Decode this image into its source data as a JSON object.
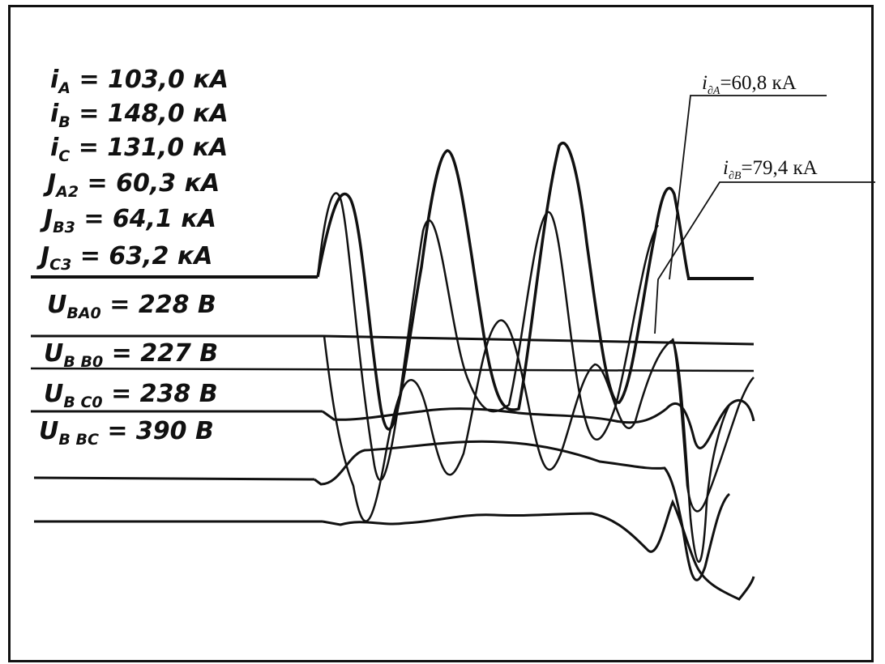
{
  "oscillogram": {
    "readings": [
      {
        "symbol": "i",
        "sub": "A",
        "eq": " = 103,0 кА"
      },
      {
        "symbol": "i",
        "sub": "B",
        "eq": " = 148,0 кА"
      },
      {
        "symbol": "i",
        "sub": "C",
        "eq": " = 131,0 кА"
      },
      {
        "symbol": "J",
        "sub": "A2",
        "eq": " = 60,3 кА"
      },
      {
        "symbol": "J",
        "sub": "B3",
        "eq": " = 64,1 кА"
      },
      {
        "symbol": "J",
        "sub": "C3",
        "eq": " = 63,2 кА"
      },
      {
        "symbol": "U",
        "sub": "BA0",
        "eq": " = 228 В"
      },
      {
        "symbol": "U",
        "sub": "B B0",
        "eq": " = 227 В"
      },
      {
        "symbol": "U",
        "sub": "B C0",
        "eq": " = 238 В"
      },
      {
        "symbol": "U",
        "sub": "B BC",
        "eq": " = 390 В"
      }
    ],
    "annotations": [
      {
        "symbol": "i",
        "sub": "∂A",
        "eq": "=60,8 кА"
      },
      {
        "symbol": "i",
        "sub": "∂B",
        "eq": "=79,4 кА"
      }
    ],
    "ink_color": "#111111"
  }
}
